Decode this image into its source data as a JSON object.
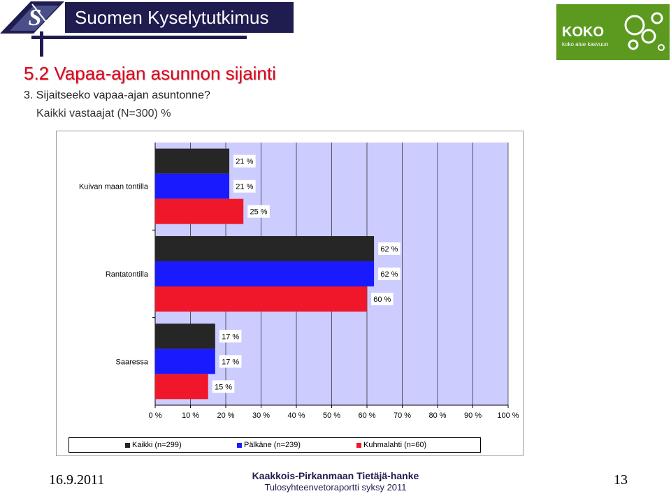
{
  "header": {
    "company": "Suomen Kyselytutkimus Oy",
    "logo_icon": "s-logo-icon",
    "partner_logo": {
      "text": "KOKO",
      "tagline": "koko alue kasvuun",
      "color": "#5b9a1f"
    }
  },
  "slide": {
    "section_title": "5.2 Vapaa-ajan asunnon sijainti",
    "question": "3. Sijaitseeko vapaa-ajan asuntonne?",
    "subtitle": "Kaikki vastaajat (N=300) %"
  },
  "chart_data": {
    "type": "bar",
    "orientation": "horizontal",
    "categories": [
      "Kuivan maan tontilla",
      "Rantatontilla",
      "Saaressa"
    ],
    "series": [
      {
        "name": "Kaikki (n=299)",
        "color": "#262626",
        "values": [
          21,
          62,
          17
        ]
      },
      {
        "name": "Pälkäne (n=239)",
        "color": "#1a1aff",
        "values": [
          21,
          62,
          17
        ]
      },
      {
        "name": "Kuhmalahti (n=60)",
        "color": "#f0172a",
        "values": [
          25,
          60,
          15
        ]
      }
    ],
    "value_suffix": " %",
    "xlim": [
      0,
      100
    ],
    "xticks": [
      0,
      10,
      20,
      30,
      40,
      50,
      60,
      70,
      80,
      90,
      100
    ],
    "xtick_labels": [
      "0 %",
      "10 %",
      "20 %",
      "30 %",
      "40 %",
      "50 %",
      "60 %",
      "70 %",
      "80 %",
      "90 %",
      "100 %"
    ],
    "plot_background": "#ccccff",
    "grid": "vertical",
    "legend_position": "bottom"
  },
  "footer": {
    "date": "16.9.2011",
    "project": "Kaakkois-Pirkanmaan Tietäjä-hanke",
    "report": "Tulosyhteenvetoraportti syksy 2011",
    "page": "13"
  }
}
